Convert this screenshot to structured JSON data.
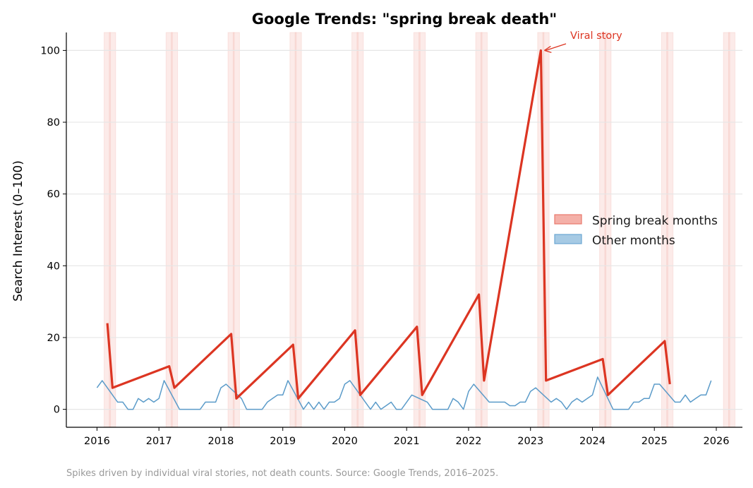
{
  "chart_data": {
    "type": "line",
    "title": "Google Trends: \"spring break death\"",
    "xlabel": "",
    "ylabel": "Search Interest (0–100)",
    "xlim": [
      "2015-07",
      "2026-06"
    ],
    "ylim": [
      -5,
      105
    ],
    "xticks": [
      "2016",
      "2017",
      "2018",
      "2019",
      "2020",
      "2021",
      "2022",
      "2023",
      "2024",
      "2025",
      "2026"
    ],
    "yticks": [
      0,
      20,
      40,
      60,
      80,
      100
    ],
    "grid": "horizontal",
    "legend_placement": "center-right",
    "shaded_spans": "March–April of each year",
    "series": [
      {
        "name": "Spring break months",
        "color": "#dc3522",
        "legend_color": "#f4b0a8",
        "points": [
          [
            "2016-03",
            24
          ],
          [
            "2016-04",
            6
          ],
          [
            "2017-03",
            12
          ],
          [
            "2017-04",
            6
          ],
          [
            "2018-03",
            21
          ],
          [
            "2018-04",
            3
          ],
          [
            "2019-03",
            18
          ],
          [
            "2019-04",
            3
          ],
          [
            "2020-03",
            22
          ],
          [
            "2020-04",
            4
          ],
          [
            "2021-03",
            23
          ],
          [
            "2021-04",
            4
          ],
          [
            "2022-03",
            32
          ],
          [
            "2022-04",
            8
          ],
          [
            "2023-03",
            100
          ],
          [
            "2023-04",
            8
          ],
          [
            "2024-03",
            14
          ],
          [
            "2024-04",
            4
          ],
          [
            "2025-03",
            19
          ],
          [
            "2025-04",
            7
          ]
        ]
      },
      {
        "name": "Other months",
        "color": "#5b9bc9",
        "legend_color": "#a6cae4",
        "points": [
          [
            "2016-01",
            6
          ],
          [
            "2016-02",
            8
          ],
          [
            "2016-05",
            2
          ],
          [
            "2016-06",
            2
          ],
          [
            "2016-07",
            0
          ],
          [
            "2016-08",
            0
          ],
          [
            "2016-09",
            3
          ],
          [
            "2016-10",
            2
          ],
          [
            "2016-11",
            3
          ],
          [
            "2016-12",
            2
          ],
          [
            "2017-01",
            3
          ],
          [
            "2017-02",
            8
          ],
          [
            "2017-05",
            0
          ],
          [
            "2017-06",
            0
          ],
          [
            "2017-07",
            0
          ],
          [
            "2017-08",
            0
          ],
          [
            "2017-09",
            0
          ],
          [
            "2017-10",
            2
          ],
          [
            "2017-11",
            2
          ],
          [
            "2017-12",
            2
          ],
          [
            "2018-01",
            6
          ],
          [
            "2018-02",
            7
          ],
          [
            "2018-05",
            3
          ],
          [
            "2018-06",
            0
          ],
          [
            "2018-07",
            0
          ],
          [
            "2018-08",
            0
          ],
          [
            "2018-09",
            0
          ],
          [
            "2018-10",
            2
          ],
          [
            "2018-11",
            3
          ],
          [
            "2018-12",
            4
          ],
          [
            "2019-01",
            4
          ],
          [
            "2019-02",
            8
          ],
          [
            "2019-05",
            0
          ],
          [
            "2019-06",
            2
          ],
          [
            "2019-07",
            0
          ],
          [
            "2019-08",
            2
          ],
          [
            "2019-09",
            0
          ],
          [
            "2019-10",
            2
          ],
          [
            "2019-11",
            2
          ],
          [
            "2019-12",
            3
          ],
          [
            "2020-01",
            7
          ],
          [
            "2020-02",
            8
          ],
          [
            "2020-05",
            2
          ],
          [
            "2020-06",
            0
          ],
          [
            "2020-07",
            2
          ],
          [
            "2020-08",
            0
          ],
          [
            "2020-09",
            1
          ],
          [
            "2020-10",
            2
          ],
          [
            "2020-11",
            0
          ],
          [
            "2020-12",
            0
          ],
          [
            "2021-01",
            2
          ],
          [
            "2021-02",
            4
          ],
          [
            "2021-05",
            2
          ],
          [
            "2021-06",
            0
          ],
          [
            "2021-07",
            0
          ],
          [
            "2021-08",
            0
          ],
          [
            "2021-09",
            0
          ],
          [
            "2021-10",
            3
          ],
          [
            "2021-11",
            2
          ],
          [
            "2021-12",
            0
          ],
          [
            "2022-01",
            5
          ],
          [
            "2022-02",
            7
          ],
          [
            "2022-05",
            2
          ],
          [
            "2022-06",
            2
          ],
          [
            "2022-07",
            2
          ],
          [
            "2022-08",
            2
          ],
          [
            "2022-09",
            1
          ],
          [
            "2022-10",
            1
          ],
          [
            "2022-11",
            2
          ],
          [
            "2022-12",
            2
          ],
          [
            "2023-01",
            5
          ],
          [
            "2023-02",
            6
          ],
          [
            "2023-05",
            2
          ],
          [
            "2023-06",
            3
          ],
          [
            "2023-07",
            2
          ],
          [
            "2023-08",
            0
          ],
          [
            "2023-09",
            2
          ],
          [
            "2023-10",
            3
          ],
          [
            "2023-11",
            2
          ],
          [
            "2023-12",
            3
          ],
          [
            "2024-01",
            4
          ],
          [
            "2024-02",
            9
          ],
          [
            "2024-05",
            0
          ],
          [
            "2024-06",
            0
          ],
          [
            "2024-07",
            0
          ],
          [
            "2024-08",
            0
          ],
          [
            "2024-09",
            2
          ],
          [
            "2024-10",
            2
          ],
          [
            "2024-11",
            3
          ],
          [
            "2024-12",
            3
          ],
          [
            "2025-01",
            7
          ],
          [
            "2025-02",
            7
          ],
          [
            "2025-05",
            2
          ],
          [
            "2025-06",
            2
          ],
          [
            "2025-07",
            4
          ],
          [
            "2025-08",
            2
          ],
          [
            "2025-09",
            3
          ],
          [
            "2025-10",
            4
          ],
          [
            "2025-11",
            4
          ],
          [
            "2025-12",
            8
          ]
        ]
      }
    ],
    "annotations": [
      {
        "text": "Viral story",
        "x": "2023-03",
        "y": 100,
        "color": "#dc3522"
      }
    ],
    "footnote": "Spikes driven by individual viral stories, not death counts. Source: Google Trends, 2016–2025."
  }
}
